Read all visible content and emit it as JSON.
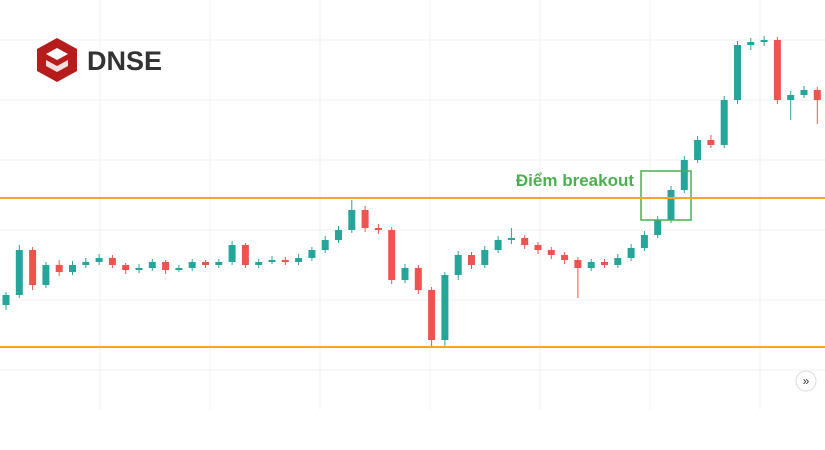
{
  "brand": "DNSE",
  "chart_data": {
    "type": "candlestick",
    "annotation": "Điểm breakout",
    "up_color": "#26a69a",
    "down_color": "#ef5350",
    "ylim": [
      0,
      410
    ],
    "levels": [
      212,
      63
    ],
    "level_color": "#f5a623",
    "ohlc": [
      [
        105,
        118,
        100,
        115
      ],
      [
        115,
        165,
        112,
        160
      ],
      [
        160,
        163,
        120,
        125
      ],
      [
        125,
        148,
        122,
        145
      ],
      [
        145,
        150,
        134,
        138
      ],
      [
        138,
        149,
        135,
        145
      ],
      [
        145,
        152,
        142,
        148
      ],
      [
        148,
        156,
        145,
        152
      ],
      [
        152,
        155,
        142,
        145
      ],
      [
        145,
        147,
        136,
        140
      ],
      [
        140,
        146,
        137,
        142
      ],
      [
        142,
        151,
        139,
        148
      ],
      [
        148,
        150,
        136,
        140
      ],
      [
        140,
        145,
        138,
        142
      ],
      [
        142,
        151,
        139,
        148
      ],
      [
        148,
        150,
        142,
        145
      ],
      [
        145,
        151,
        142,
        148
      ],
      [
        148,
        169,
        145,
        165
      ],
      [
        165,
        167,
        142,
        145
      ],
      [
        145,
        151,
        142,
        148
      ],
      [
        148,
        154,
        146,
        150
      ],
      [
        150,
        153,
        145,
        148
      ],
      [
        148,
        156,
        145,
        152
      ],
      [
        152,
        163,
        149,
        160
      ],
      [
        160,
        174,
        157,
        170
      ],
      [
        170,
        184,
        167,
        180
      ],
      [
        180,
        210,
        177,
        200
      ],
      [
        200,
        204,
        178,
        182
      ],
      [
        182,
        186,
        176,
        180
      ],
      [
        180,
        183,
        126,
        130
      ],
      [
        130,
        146,
        127,
        142
      ],
      [
        142,
        145,
        116,
        120
      ],
      [
        120,
        123,
        64,
        70
      ],
      [
        70,
        138,
        64,
        135
      ],
      [
        135,
        159,
        130,
        155
      ],
      [
        155,
        158,
        141,
        145
      ],
      [
        145,
        164,
        142,
        160
      ],
      [
        160,
        174,
        157,
        170
      ],
      [
        170,
        182,
        166,
        172
      ],
      [
        172,
        175,
        161,
        165
      ],
      [
        165,
        168,
        156,
        160
      ],
      [
        160,
        163,
        151,
        155
      ],
      [
        155,
        158,
        146,
        150
      ],
      [
        150,
        153,
        112,
        142
      ],
      [
        142,
        151,
        139,
        148
      ],
      [
        148,
        151,
        142,
        145
      ],
      [
        145,
        156,
        142,
        152
      ],
      [
        152,
        166,
        149,
        162
      ],
      [
        162,
        179,
        159,
        175
      ],
      [
        175,
        194,
        172,
        190
      ],
      [
        190,
        224,
        187,
        220
      ],
      [
        220,
        254,
        217,
        250
      ],
      [
        250,
        274,
        247,
        270
      ],
      [
        270,
        275,
        262,
        265
      ],
      [
        265,
        314,
        262,
        310
      ],
      [
        310,
        369,
        306,
        365
      ],
      [
        365,
        372,
        360,
        368
      ],
      [
        368,
        374,
        364,
        370
      ],
      [
        370,
        373,
        306,
        310
      ],
      [
        310,
        319,
        290,
        315
      ],
      [
        315,
        324,
        312,
        320
      ],
      [
        320,
        323,
        286,
        310
      ]
    ]
  }
}
